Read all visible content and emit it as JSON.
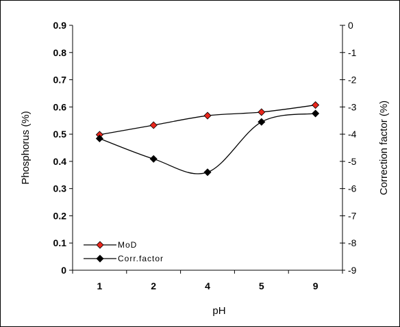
{
  "chart_data": {
    "type": "line",
    "categories": [
      "1",
      "2",
      "4",
      "5",
      "9"
    ],
    "xlabel": "pH",
    "ylabel": "Phosphorus (%)",
    "y2label": "Correction factor (%)",
    "ylim": [
      0,
      0.9
    ],
    "y_ticks": [
      "0",
      "0.1",
      "0.2",
      "0.3",
      "0.4",
      "0.5",
      "0.6",
      "0.7",
      "0.8",
      "0.9"
    ],
    "y2lim": [
      -9,
      0
    ],
    "y2_ticks": [
      "0",
      "-1",
      "-2",
      "-3",
      "-4",
      "-5",
      "-6",
      "-7",
      "-8",
      "-9"
    ],
    "grid": false,
    "legend_position": "bottom-left",
    "series": [
      {
        "name": "MoD",
        "axis": "left",
        "color": "#e8261c",
        "values": [
          0.498,
          0.533,
          0.568,
          0.581,
          0.607
        ]
      },
      {
        "name": "Corr.factor",
        "axis": "right",
        "color": "#000000",
        "values": [
          -4.16,
          -4.91,
          -5.4,
          -3.55,
          -3.24
        ]
      }
    ]
  }
}
